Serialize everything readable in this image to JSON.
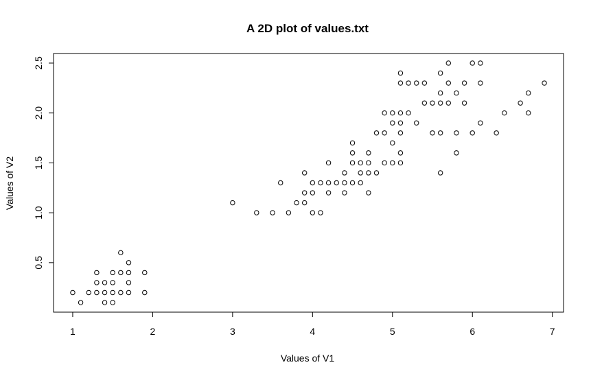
{
  "chart_data": {
    "type": "scatter",
    "title": "A 2D plot of values.txt",
    "xlabel": "Values of V1",
    "ylabel": "Values of V2",
    "xticks": [
      "1",
      "2",
      "3",
      "4",
      "5",
      "6",
      "7"
    ],
    "yticks": [
      "0.5",
      "1.0",
      "1.5",
      "2.0",
      "2.5"
    ],
    "xlim": [
      0.76,
      7.14
    ],
    "ylim": [
      0.004,
      2.596
    ],
    "grid": false,
    "legend": "none",
    "marker": "open-circle",
    "colors": {
      "points": "#000000",
      "axes": "#000000",
      "background": "#ffffff"
    },
    "points": [
      [
        1.0,
        0.2
      ],
      [
        1.1,
        0.1
      ],
      [
        1.2,
        0.2
      ],
      [
        1.3,
        0.4
      ],
      [
        1.3,
        0.3
      ],
      [
        1.3,
        0.2
      ],
      [
        1.4,
        0.3
      ],
      [
        1.4,
        0.2
      ],
      [
        1.4,
        0.1
      ],
      [
        1.5,
        0.4
      ],
      [
        1.5,
        0.3
      ],
      [
        1.5,
        0.2
      ],
      [
        1.5,
        0.1
      ],
      [
        1.6,
        0.6
      ],
      [
        1.6,
        0.4
      ],
      [
        1.6,
        0.2
      ],
      [
        1.7,
        0.5
      ],
      [
        1.7,
        0.4
      ],
      [
        1.7,
        0.3
      ],
      [
        1.7,
        0.2
      ],
      [
        1.9,
        0.4
      ],
      [
        1.9,
        0.2
      ],
      [
        3.0,
        1.1
      ],
      [
        3.3,
        1.0
      ],
      [
        3.5,
        1.0
      ],
      [
        3.6,
        1.3
      ],
      [
        3.7,
        1.0
      ],
      [
        3.8,
        1.1
      ],
      [
        3.9,
        1.4
      ],
      [
        3.9,
        1.2
      ],
      [
        3.9,
        1.1
      ],
      [
        4.0,
        1.3
      ],
      [
        4.0,
        1.2
      ],
      [
        4.0,
        1.0
      ],
      [
        4.1,
        1.3
      ],
      [
        4.1,
        1.0
      ],
      [
        4.2,
        1.5
      ],
      [
        4.2,
        1.3
      ],
      [
        4.2,
        1.2
      ],
      [
        4.3,
        1.3
      ],
      [
        4.4,
        1.4
      ],
      [
        4.4,
        1.3
      ],
      [
        4.4,
        1.2
      ],
      [
        4.5,
        1.7
      ],
      [
        4.5,
        1.6
      ],
      [
        4.5,
        1.5
      ],
      [
        4.5,
        1.3
      ],
      [
        4.6,
        1.5
      ],
      [
        4.6,
        1.4
      ],
      [
        4.6,
        1.3
      ],
      [
        4.7,
        1.6
      ],
      [
        4.7,
        1.5
      ],
      [
        4.7,
        1.4
      ],
      [
        4.7,
        1.2
      ],
      [
        4.8,
        1.8
      ],
      [
        4.8,
        1.4
      ],
      [
        4.9,
        2.0
      ],
      [
        4.9,
        1.8
      ],
      [
        4.9,
        1.5
      ],
      [
        5.0,
        2.0
      ],
      [
        5.0,
        1.9
      ],
      [
        5.0,
        1.7
      ],
      [
        5.0,
        1.5
      ],
      [
        5.1,
        2.4
      ],
      [
        5.1,
        2.3
      ],
      [
        5.1,
        2.0
      ],
      [
        5.1,
        1.9
      ],
      [
        5.1,
        1.8
      ],
      [
        5.1,
        1.6
      ],
      [
        5.1,
        1.5
      ],
      [
        5.2,
        2.3
      ],
      [
        5.2,
        2.0
      ],
      [
        5.3,
        2.3
      ],
      [
        5.3,
        1.9
      ],
      [
        5.4,
        2.3
      ],
      [
        5.4,
        2.1
      ],
      [
        5.5,
        2.1
      ],
      [
        5.5,
        1.8
      ],
      [
        5.6,
        2.4
      ],
      [
        5.6,
        2.2
      ],
      [
        5.6,
        2.1
      ],
      [
        5.6,
        1.8
      ],
      [
        5.6,
        1.4
      ],
      [
        5.7,
        2.5
      ],
      [
        5.7,
        2.3
      ],
      [
        5.7,
        2.1
      ],
      [
        5.8,
        2.2
      ],
      [
        5.8,
        1.8
      ],
      [
        5.8,
        1.6
      ],
      [
        5.9,
        2.3
      ],
      [
        5.9,
        2.1
      ],
      [
        6.0,
        2.5
      ],
      [
        6.0,
        1.8
      ],
      [
        6.1,
        2.5
      ],
      [
        6.1,
        2.3
      ],
      [
        6.1,
        1.9
      ],
      [
        6.3,
        1.8
      ],
      [
        6.4,
        2.0
      ],
      [
        6.6,
        2.1
      ],
      [
        6.7,
        2.2
      ],
      [
        6.7,
        2.0
      ],
      [
        6.9,
        2.3
      ]
    ]
  }
}
